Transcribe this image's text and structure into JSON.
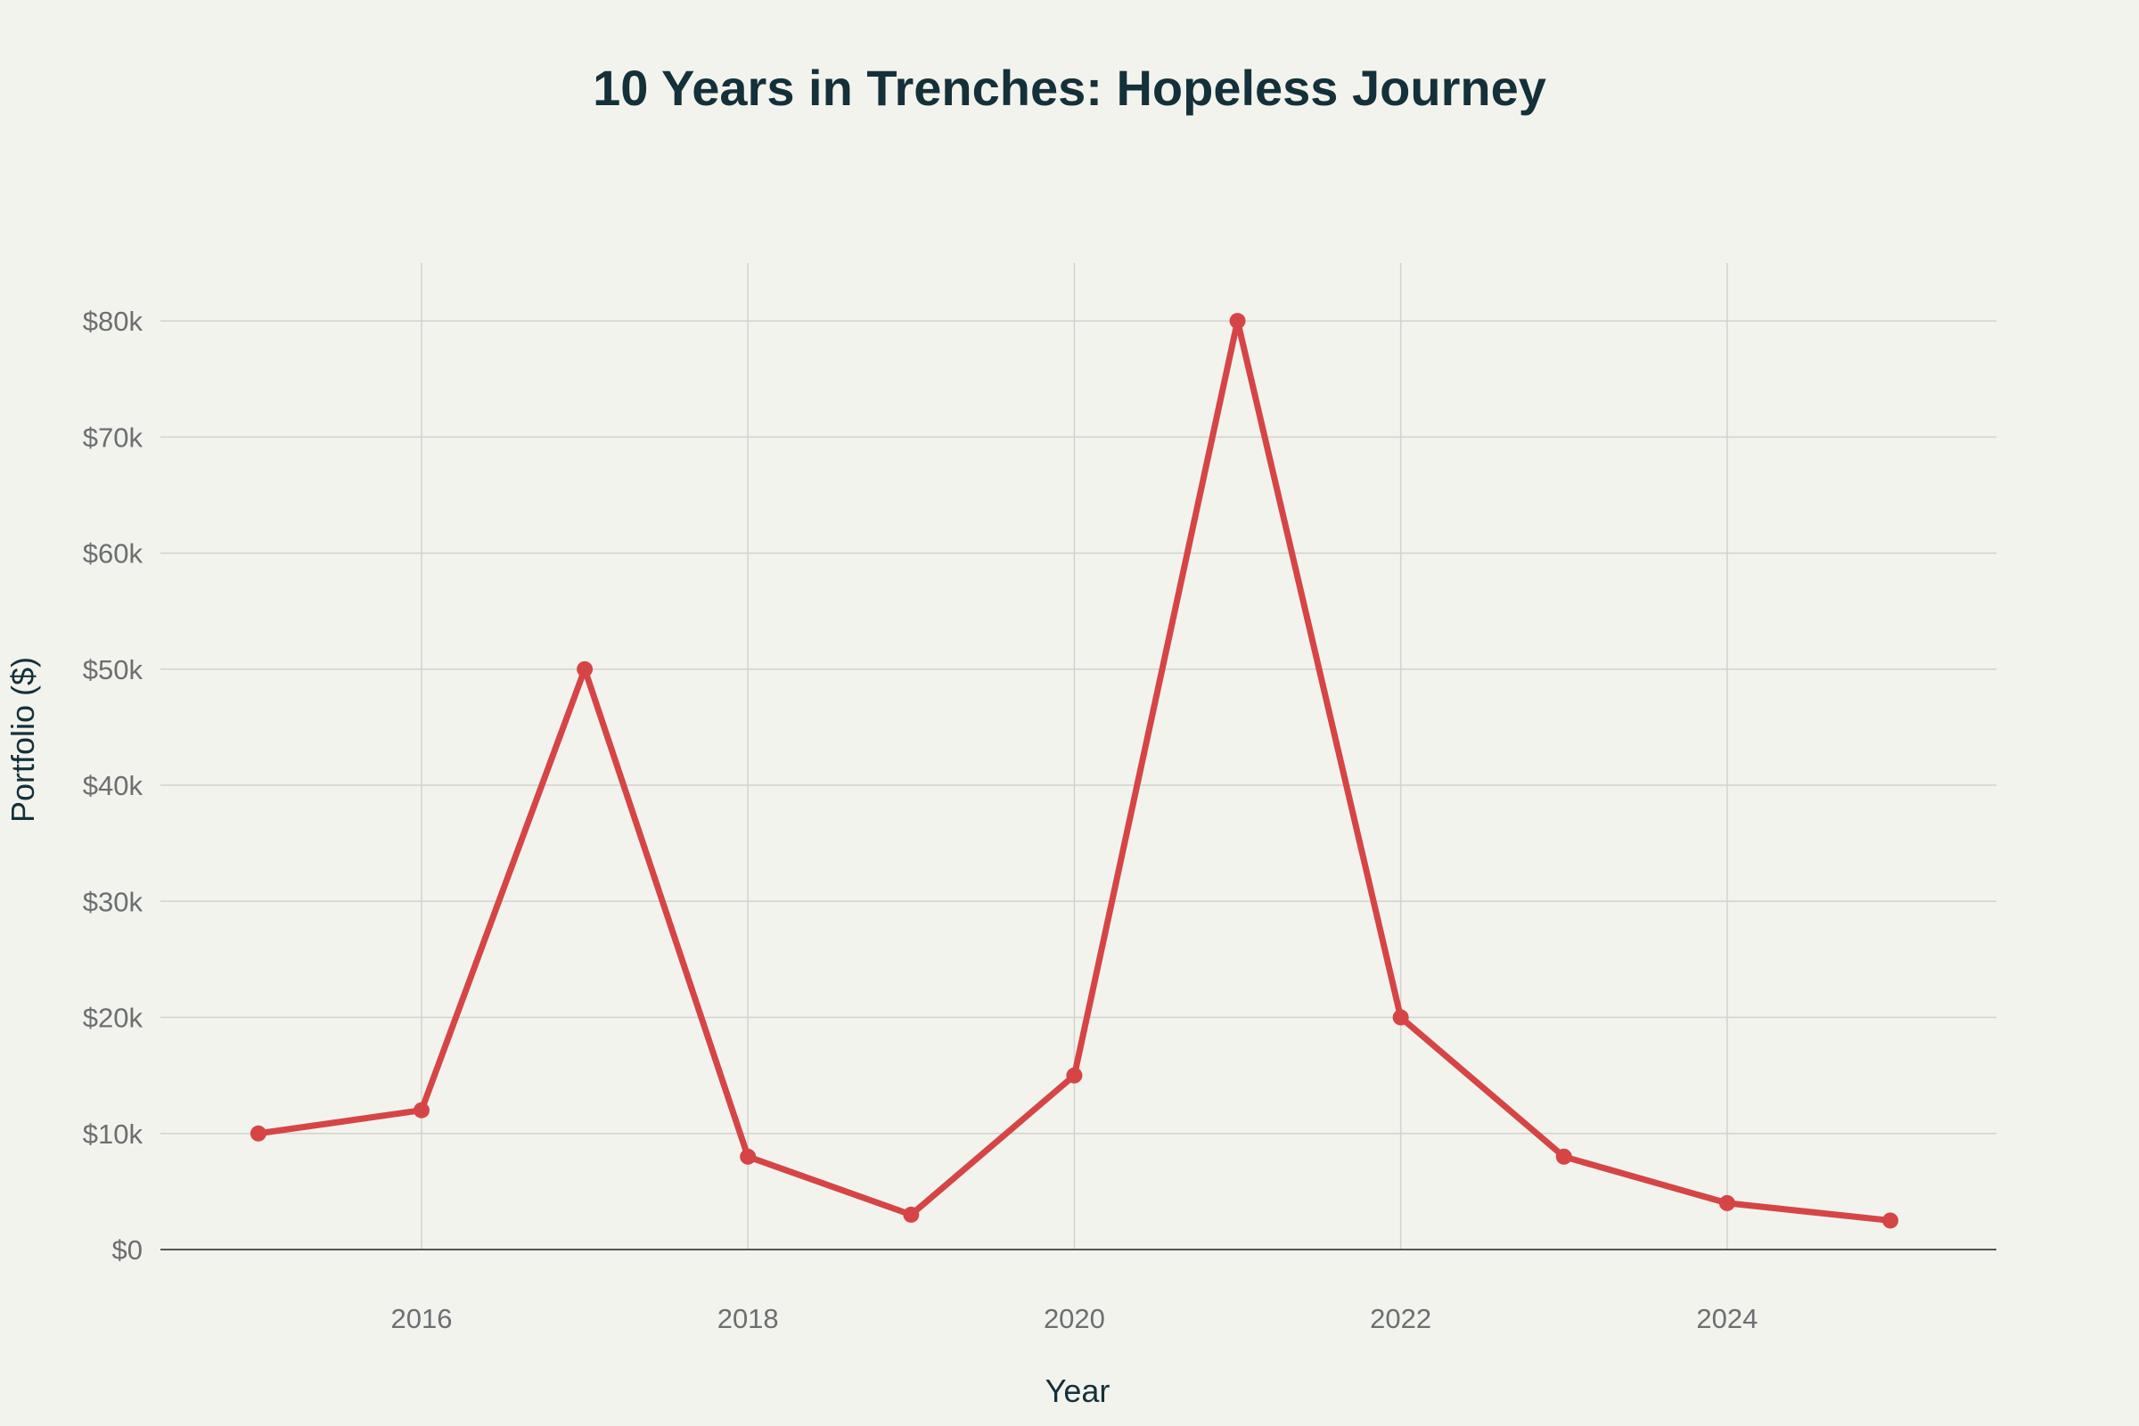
{
  "chart_data": {
    "type": "line",
    "title": "10 Years in Trenches: Hopeless Journey",
    "xlabel": "Year",
    "ylabel": "Portfolio ($)",
    "x": [
      2015,
      2016,
      2017,
      2018,
      2019,
      2020,
      2021,
      2022,
      2023,
      2024,
      2025
    ],
    "series": [
      {
        "values": [
          10000,
          12000,
          50000,
          8000,
          3000,
          15000,
          80000,
          20000,
          8000,
          4000,
          2500
        ]
      }
    ],
    "xlim": [
      2014.4,
      2025.65
    ],
    "ylim": [
      0,
      85000
    ],
    "x_ticks": [
      2016,
      2018,
      2020,
      2022,
      2024
    ],
    "x_tick_labels": [
      "2016",
      "2018",
      "2020",
      "2022",
      "2024"
    ],
    "y_ticks": [
      0,
      10000,
      20000,
      30000,
      40000,
      50000,
      60000,
      70000,
      80000
    ],
    "y_tick_labels": [
      "$0",
      "$10k",
      "$20k",
      "$30k",
      "$40k",
      "$50k",
      "$60k",
      "$70k",
      "$80k"
    ],
    "grid": true,
    "legend": "none",
    "colors": {
      "line": "#d64545",
      "background": "#f3f3ee"
    }
  }
}
